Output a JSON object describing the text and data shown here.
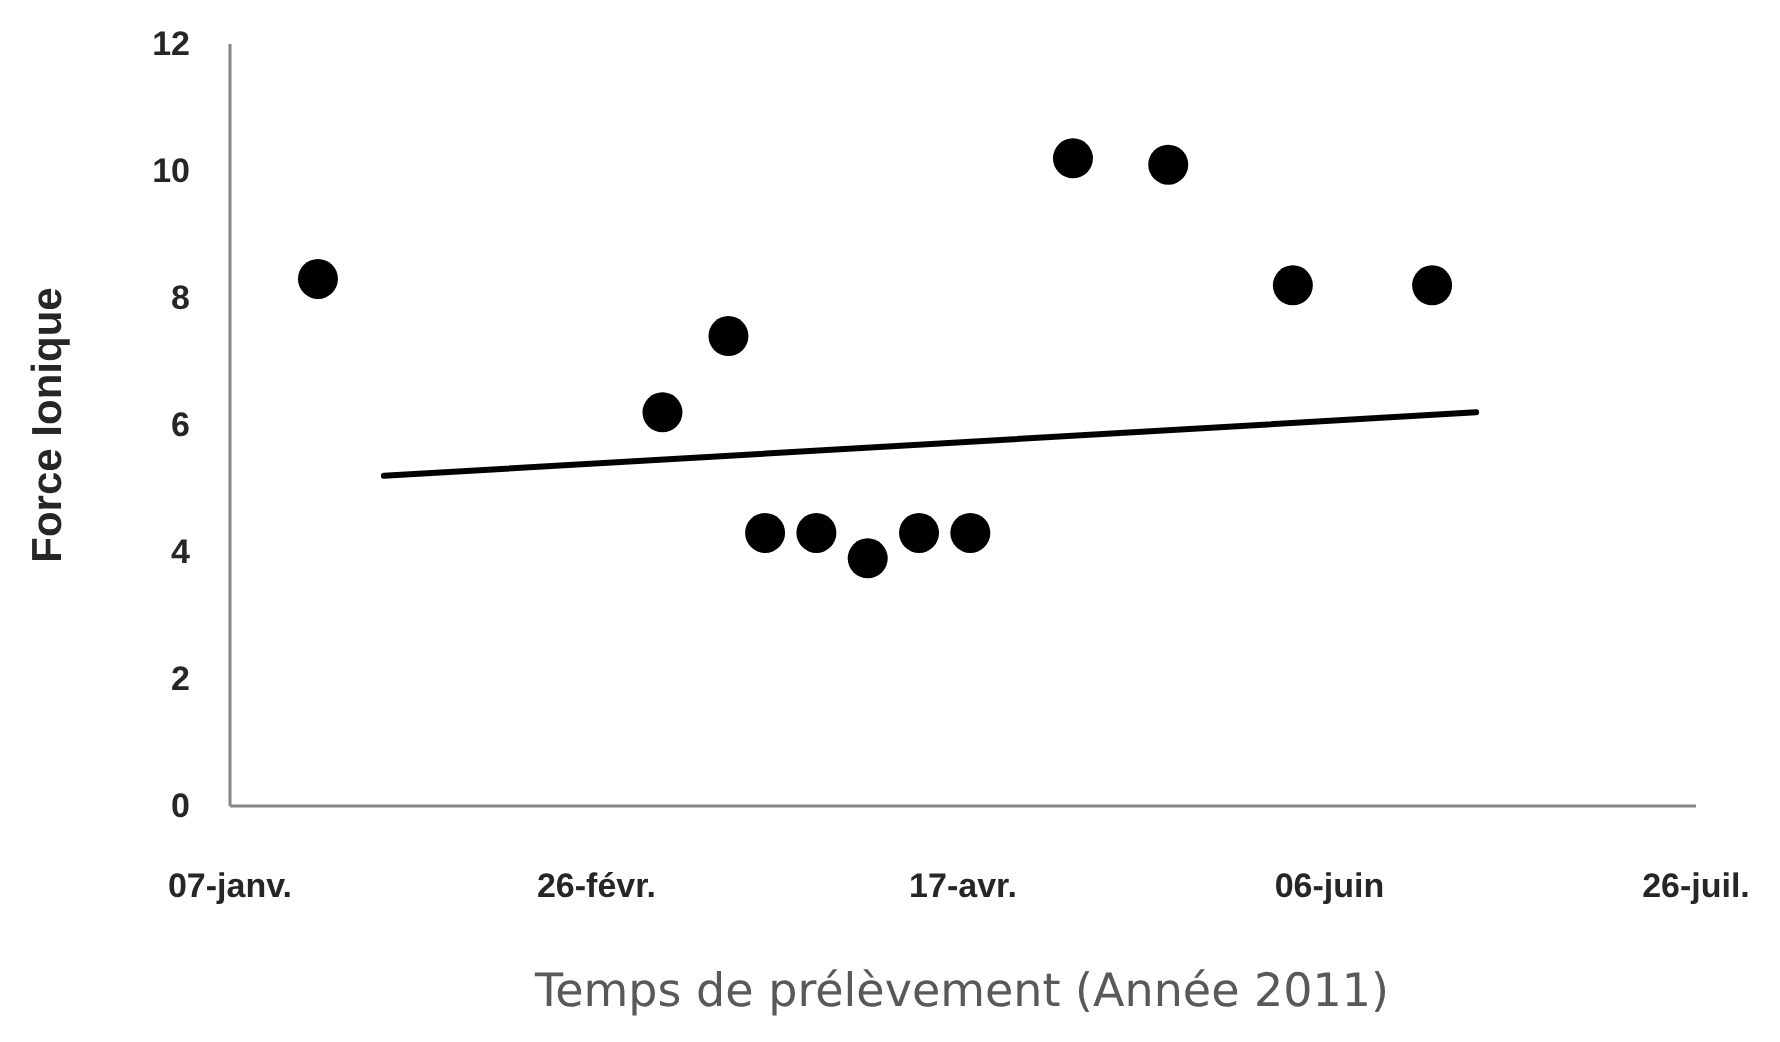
{
  "chart_data": {
    "type": "scatter",
    "xlabel": "Temps de prélèvement (Année 2011)",
    "ylabel": "Force Ionique",
    "xlim": [
      "2011-01-07",
      "2011-07-26"
    ],
    "xticks": [
      {
        "value": "2011-01-07",
        "label": "07-janv."
      },
      {
        "value": "2011-02-26",
        "label": "26-févr."
      },
      {
        "value": "2011-04-17",
        "label": "17-avr."
      },
      {
        "value": "2011-06-06",
        "label": "06-juin"
      },
      {
        "value": "2011-07-26",
        "label": "26-juil."
      }
    ],
    "ylim": [
      0,
      12
    ],
    "yticks": [
      0,
      2,
      4,
      6,
      8,
      10,
      12
    ],
    "grid": false,
    "marker": "circle",
    "series": [
      {
        "color": "#000000",
        "x": [
          "2011-01-19",
          "2011-03-07",
          "2011-03-16",
          "2011-03-21",
          "2011-03-28",
          "2011-04-04",
          "2011-04-11",
          "2011-04-18",
          "2011-05-02",
          "2011-05-15",
          "2011-06-01",
          "2011-06-20"
        ],
        "values": [
          8.3,
          6.2,
          7.4,
          4.3,
          4.3,
          3.9,
          4.3,
          4.3,
          10.2,
          10.1,
          8.2,
          8.2
        ]
      },
      {
        "type": "line",
        "color": "#000000",
        "line_style": "solid",
        "marker": "none",
        "x": [
          "2011-01-28",
          "2011-06-26"
        ],
        "values": [
          5.2,
          6.2
        ]
      }
    ]
  }
}
